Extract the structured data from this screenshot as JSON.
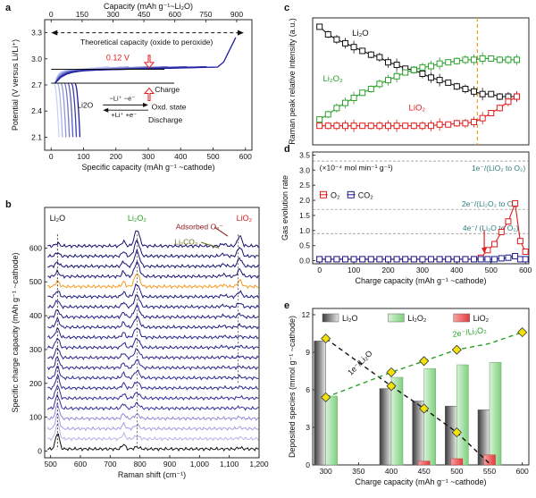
{
  "colors": {
    "black": "#111111",
    "red": "#e01b1b",
    "green": "#2aa02a",
    "navy": "#1b1b8c",
    "orange": "#f39a1e",
    "teal": "#2f7f7f",
    "darkred": "#8b1a1a",
    "olive": "#6b6b1e",
    "yellow": "#f2e20a"
  },
  "chart_data": [
    {
      "panel": "a",
      "type": "line",
      "panel_letter": "a",
      "top_axis_label": "Capacity (mAh g⁻¹~Li₂O)",
      "top_ticks": [
        0,
        150,
        300,
        450,
        600,
        750,
        900
      ],
      "xlabel": "Specific capacity (mAh g⁻¹ ~cathode)",
      "ylabel": "Potential (V versus Li/Li⁺)",
      "x_ticks": [
        0,
        100,
        200,
        300,
        400,
        500,
        600
      ],
      "y_ticks": [
        2.1,
        2.4,
        2.7,
        3.0,
        3.3
      ],
      "xlim": [
        -20,
        620
      ],
      "ylim": [
        1.95,
        3.45
      ],
      "annotations": {
        "theoretical": "Theoretical capacity (oxide to peroxide)",
        "overpotential": "0.12 V",
        "charge": "Charge",
        "discharge": "Discharge",
        "li2o": "Li2O",
        "oxd": "Oxd. state",
        "minus_li": "−Li⁺ −e⁻",
        "plus_li": "+Li⁺ +e⁻"
      },
      "discharge_curves_end_x": [
        0,
        18,
        36,
        54,
        72,
        90,
        108
      ],
      "charge_curves_end_x": [
        180,
        240,
        300,
        360,
        420,
        480,
        570
      ],
      "discharge_plateau_v": 2.72,
      "charge_plateau_v": 2.86
    },
    {
      "panel": "b",
      "type": "line",
      "panel_letter": "b",
      "xlabel": "Raman shift (cm⁻¹)",
      "ylabel": "Specific charge capacity (mAh g⁻¹ ~cathode)",
      "x_ticks": [
        500,
        600,
        700,
        800,
        900,
        "1,000",
        "1,100",
        "1,200"
      ],
      "x_tick_values": [
        500,
        600,
        700,
        800,
        900,
        1000,
        1100,
        1200
      ],
      "y_ticks": [
        0,
        100,
        200,
        300,
        400,
        500,
        600
      ],
      "xlim": [
        480,
        1200
      ],
      "ylim": [
        -20,
        720
      ],
      "peak_labels": {
        "li2o": "Li₂O",
        "li2o2": "Li₂O₂",
        "adsorbed": "Adsorbed O₂⁻",
        "li2co3": "Li₂CO₃",
        "lio2": "LiO₂"
      },
      "spectra_offsets": [
        0,
        30,
        60,
        90,
        120,
        150,
        180,
        210,
        240,
        270,
        300,
        330,
        360,
        390,
        420,
        450,
        480,
        510,
        540,
        570,
        600
      ],
      "highlight_offset": 480
    },
    {
      "panel": "c",
      "type": "line",
      "panel_letter": "c",
      "ylabel": "Raman peak relative intensity (a.u.)",
      "xlim": [
        -20,
        610
      ],
      "ylim": [
        0,
        1
      ],
      "vline_x": 460,
      "series": [
        {
          "name": "Li₂O",
          "x": [
            0,
            25,
            50,
            75,
            100,
            125,
            150,
            175,
            200,
            225,
            250,
            275,
            300,
            325,
            350,
            375,
            400,
            425,
            450,
            475,
            500,
            525,
            550,
            575
          ],
          "values": [
            0.93,
            0.87,
            0.83,
            0.8,
            0.77,
            0.74,
            0.71,
            0.69,
            0.65,
            0.63,
            0.6,
            0.59,
            0.56,
            0.53,
            0.51,
            0.49,
            0.46,
            0.44,
            0.42,
            0.4,
            0.4,
            0.38,
            0.38,
            0.38
          ]
        },
        {
          "name": "Li₂O₂",
          "x": [
            0,
            25,
            50,
            75,
            100,
            125,
            150,
            175,
            200,
            225,
            250,
            275,
            300,
            325,
            350,
            375,
            400,
            425,
            450,
            475,
            500,
            525,
            550,
            575
          ],
          "values": [
            0.2,
            0.24,
            0.29,
            0.33,
            0.37,
            0.41,
            0.44,
            0.48,
            0.51,
            0.54,
            0.57,
            0.59,
            0.61,
            0.62,
            0.64,
            0.65,
            0.66,
            0.67,
            0.67,
            0.68,
            0.68,
            0.67,
            0.67,
            0.67
          ]
        },
        {
          "name": "LiO₂",
          "x": [
            0,
            25,
            50,
            75,
            100,
            125,
            150,
            175,
            200,
            225,
            250,
            275,
            300,
            325,
            350,
            375,
            400,
            425,
            450,
            475,
            500,
            525,
            550,
            575
          ],
          "values": [
            0.15,
            0.15,
            0.15,
            0.15,
            0.15,
            0.15,
            0.15,
            0.15,
            0.15,
            0.15,
            0.15,
            0.15,
            0.15,
            0.15,
            0.16,
            0.16,
            0.17,
            0.17,
            0.18,
            0.21,
            0.25,
            0.29,
            0.34,
            0.38
          ]
        }
      ]
    },
    {
      "panel": "d",
      "type": "line",
      "panel_letter": "d",
      "ylabel": "Gas evolution rate",
      "xlabel": "Charge capacity (mAh g⁻¹ ~cathode)",
      "unit_note": "(×10⁻⁴ mol min⁻¹ g⁻¹)",
      "x_ticks": [
        0,
        100,
        200,
        300,
        400,
        500,
        600
      ],
      "y_ticks": [
        "0.0",
        "0.5",
        "1.0",
        "1.5",
        "2.0",
        "2.5",
        "3.0",
        "3.5"
      ],
      "xlim": [
        -20,
        610
      ],
      "ylim": [
        -0.1,
        3.6
      ],
      "ref_lines": [
        {
          "y": 3.3,
          "label": "1e⁻/(LiO₂ to O₂)"
        },
        {
          "y": 1.7,
          "label": "2e⁻/(Li₂O₂ to O₂)"
        },
        {
          "y": 0.9,
          "label": "4e⁻/ (Li₂O to O₂)"
        }
      ],
      "series": [
        {
          "name": "O₂",
          "x": [
            0,
            25,
            50,
            75,
            100,
            125,
            150,
            175,
            200,
            225,
            250,
            275,
            300,
            325,
            350,
            375,
            400,
            425,
            450,
            470,
            490,
            510,
            530,
            550,
            570,
            585,
            600
          ],
          "values": [
            0.05,
            0.05,
            0.05,
            0.05,
            0.05,
            0.05,
            0.05,
            0.05,
            0.05,
            0.05,
            0.05,
            0.05,
            0.05,
            0.05,
            0.05,
            0.05,
            0.05,
            0.05,
            0.05,
            0.1,
            0.35,
            0.55,
            0.95,
            1.3,
            1.9,
            0.65,
            0.3
          ]
        },
        {
          "name": "CO₂",
          "x": [
            0,
            25,
            50,
            75,
            100,
            125,
            150,
            175,
            200,
            225,
            250,
            275,
            300,
            325,
            350,
            375,
            400,
            425,
            450,
            470,
            490,
            510,
            530,
            550,
            570,
            585,
            600
          ],
          "values": [
            0.05,
            0.05,
            0.05,
            0.05,
            0.05,
            0.05,
            0.05,
            0.05,
            0.05,
            0.05,
            0.05,
            0.05,
            0.05,
            0.05,
            0.05,
            0.05,
            0.05,
            0.05,
            0.05,
            0.05,
            0.05,
            0.05,
            0.08,
            0.1,
            0.15,
            0.05,
            0.05
          ]
        }
      ]
    },
    {
      "panel": "e",
      "type": "bar",
      "panel_letter": "e",
      "xlabel": "Charge capacity (mAh g⁻¹ ~cathode)",
      "ylabel": "Deposited species (mmol g⁻¹ ~cathode)",
      "x_ticks": [
        300,
        350,
        400,
        450,
        500,
        550,
        600
      ],
      "y_ticks": [
        0,
        3,
        6,
        9,
        12
      ],
      "xlim": [
        280,
        610
      ],
      "ylim": [
        0,
        12.5
      ],
      "categories": [
        300,
        400,
        450,
        500,
        550
      ],
      "series": [
        {
          "name": "Li₂O",
          "values": [
            9.9,
            6.1,
            5.1,
            4.7,
            4.4
          ]
        },
        {
          "name": "Li₂O₂",
          "values": [
            5.5,
            7.0,
            7.7,
            8.0,
            8.2
          ]
        },
        {
          "name": "LiO₂",
          "values": [
            0.0,
            0.0,
            0.3,
            0.5,
            0.8
          ]
        }
      ],
      "trend_li2o": {
        "label": "1e⁻/Li₂O",
        "x": [
          300,
          400,
          450,
          500,
          550
        ],
        "values": [
          10.1,
          6.3,
          4.5,
          2.6,
          0.1
        ]
      },
      "trend_li2o2": {
        "label": "2e⁻/Li₂O₂",
        "x": [
          300,
          400,
          450,
          500,
          550,
          600
        ],
        "values": [
          5.4,
          7.4,
          8.3,
          9.2,
          9.7,
          10.6
        ]
      }
    }
  ]
}
